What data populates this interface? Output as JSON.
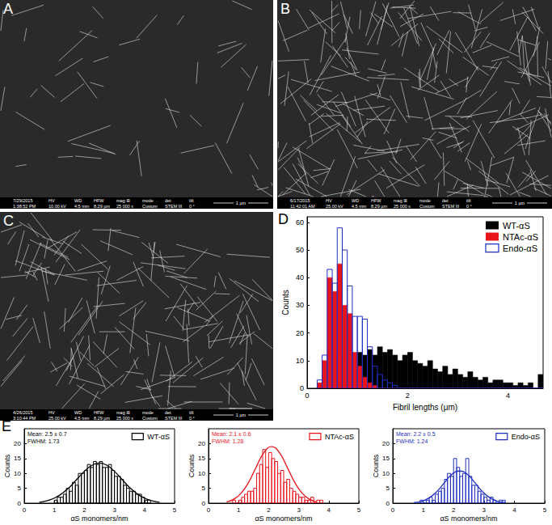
{
  "images": [
    {
      "label": "A",
      "date": "7/29/2015",
      "time": "1:38:52 PM",
      "fields": [
        {
          "label": "HV",
          "value": "10.00 kV"
        },
        {
          "label": "WD",
          "value": "4.5 mm"
        },
        {
          "label": "HFW",
          "value": "8.29 µm"
        },
        {
          "label": "mag ⊞",
          "value": "25 000 x"
        },
        {
          "label": "mode",
          "value": "Custom"
        },
        {
          "label": "det",
          "value": "STEM III"
        },
        {
          "label": "tilt",
          "value": "0 °"
        }
      ],
      "scale": "1 µm"
    },
    {
      "label": "B",
      "date": "6/17/2015",
      "time": "11:42:01 AM",
      "fields": [
        {
          "label": "HV",
          "value": "25.00 kV"
        },
        {
          "label": "WD",
          "value": "4.5 mm"
        },
        {
          "label": "HFW",
          "value": "8.29 µm"
        },
        {
          "label": "mag ⊞",
          "value": "25 000 x"
        },
        {
          "label": "mode",
          "value": "Custom"
        },
        {
          "label": "det",
          "value": "STEM III"
        },
        {
          "label": "tilt",
          "value": "0 °"
        }
      ],
      "scale": "1 µm"
    },
    {
      "label": "C",
      "date": "4/26/2015",
      "time": "3:10:44 PM",
      "fields": [
        {
          "label": "HV",
          "value": "25.00 kV"
        },
        {
          "label": "WD",
          "value": "4.5 mm"
        },
        {
          "label": "HFW",
          "value": "8.29 µm"
        },
        {
          "label": "mag ⊞",
          "value": "25 000 x"
        },
        {
          "label": "mode",
          "value": "Custom"
        },
        {
          "label": "det",
          "value": "STEM III"
        },
        {
          "label": "tilt",
          "value": "0 °"
        }
      ],
      "scale": "1 µm"
    }
  ],
  "chart_data": [
    {
      "title": "D",
      "type": "histogram",
      "x_label": "Fibril lengths (μm)",
      "y_label": "Counts",
      "xlim": [
        0,
        4.7
      ],
      "xticks": [
        0,
        2,
        4
      ],
      "ylim": [
        0,
        62
      ],
      "yticks": [
        0,
        10,
        20,
        30,
        40,
        50,
        60
      ],
      "grid": false,
      "legend": "top-right",
      "bins": [
        0.2,
        0.3,
        0.4,
        0.5,
        0.6,
        0.7,
        0.8,
        0.9,
        1,
        1.1,
        1.2,
        1.3,
        1.4,
        1.5,
        1.6,
        1.7,
        1.8,
        1.9,
        2,
        2.1,
        2.2,
        2.3,
        2.4,
        2.5,
        2.6,
        2.7,
        2.8,
        2.9,
        3,
        3.1,
        3.2,
        3.3,
        3.4,
        3.5,
        3.6,
        3.7,
        3.8,
        3.9,
        4,
        4.1,
        4.2,
        4.3,
        4.4,
        4.5,
        4.6,
        4.7
      ],
      "series": [
        {
          "name": "WT-αS",
          "color": "#000000",
          "marker": "filled",
          "values": [
            0,
            5,
            10,
            12,
            12,
            10,
            10,
            12,
            13,
            12,
            14,
            12,
            15,
            13,
            14,
            12,
            10,
            12,
            13,
            10,
            9,
            8,
            10,
            7,
            6,
            8,
            5,
            7,
            5,
            4,
            6,
            4,
            3,
            4,
            2,
            3,
            3,
            2,
            2,
            1,
            2,
            1,
            2,
            0,
            5
          ]
        },
        {
          "name": "NTAc-αS",
          "color": "#e8141c",
          "marker": "filled",
          "values": [
            2,
            10,
            40,
            35,
            45,
            30,
            27,
            13,
            8,
            4,
            2,
            1,
            0,
            0,
            0,
            0,
            0,
            0,
            0,
            0,
            0,
            0,
            0,
            0,
            0,
            0,
            0,
            0,
            0,
            0,
            0,
            0,
            0,
            0,
            0,
            0,
            0,
            0,
            0,
            0,
            0,
            0,
            0,
            0,
            0
          ]
        },
        {
          "name": "Endo-αS",
          "color": "#1f2fbf",
          "marker": "hollow",
          "values": [
            3,
            12,
            43,
            38,
            58,
            50,
            37,
            26,
            26,
            25,
            15,
            8,
            5,
            3,
            2,
            1,
            0,
            0,
            0,
            0,
            0,
            0,
            0,
            0,
            0,
            0,
            0,
            0,
            0,
            0,
            0,
            0,
            0,
            0,
            0,
            0,
            0,
            0,
            0,
            0,
            0,
            0,
            0,
            0,
            0
          ]
        }
      ]
    },
    {
      "title": "E",
      "type": "histogram",
      "x_label": "αS monomers/nm",
      "y_label": "Counts",
      "xlim": [
        0,
        5
      ],
      "xticks": [
        0,
        1,
        2,
        3,
        4,
        5
      ],
      "ylim": [
        0,
        25
      ],
      "yticks": [
        0,
        5,
        10,
        15,
        20
      ],
      "grid": false,
      "legend": "top-right",
      "annotations": [
        "Mean: 2.5 ± 0.7",
        "FWHM: 1.73"
      ],
      "bins": [
        1,
        1.1,
        1.2,
        1.3,
        1.4,
        1.5,
        1.6,
        1.7,
        1.8,
        1.9,
        2,
        2.1,
        2.2,
        2.3,
        2.4,
        2.5,
        2.6,
        2.7,
        2.8,
        2.9,
        3,
        3.1,
        3.2,
        3.3,
        3.4,
        3.5,
        3.6,
        3.7,
        3.8,
        3.9,
        4,
        4.1,
        4.2
      ],
      "series": [
        {
          "name": "WT-αS",
          "color": "#000000",
          "marker": "hollow",
          "values": [
            1,
            2,
            2,
            3,
            5,
            4,
            7,
            6,
            10,
            10,
            11,
            13,
            12,
            14,
            13,
            14,
            12,
            12,
            13,
            11,
            9,
            9,
            8,
            6,
            5,
            4,
            4,
            3,
            3,
            2,
            1,
            1
          ]
        }
      ],
      "fit": {
        "x": [
          0.5,
          0.75,
          1,
          1.25,
          1.5,
          1.75,
          2,
          2.25,
          2.5,
          2.75,
          3,
          3.25,
          3.5,
          3.75,
          4,
          4.25,
          4.5
        ],
        "y": [
          0.3,
          0.8,
          1.7,
          3.2,
          5.3,
          8.0,
          10.7,
          12.7,
          13.5,
          12.7,
          10.7,
          8.0,
          5.3,
          3.2,
          1.7,
          0.8,
          0.3
        ]
      }
    },
    {
      "type": "histogram",
      "x_label": "αS monomers/nm",
      "y_label": "Counts",
      "xlim": [
        0,
        5
      ],
      "xticks": [
        0,
        1,
        2,
        3,
        4,
        5
      ],
      "ylim": [
        0,
        25
      ],
      "yticks": [
        0,
        5,
        10,
        15,
        20
      ],
      "grid": false,
      "legend": "top-right",
      "annotations": [
        "Mean: 2.1 ± 0.6",
        "FWHM: 1.28"
      ],
      "bins": [
        0.8,
        0.9,
        1,
        1.1,
        1.2,
        1.3,
        1.4,
        1.5,
        1.6,
        1.7,
        1.8,
        1.9,
        2,
        2.1,
        2.2,
        2.3,
        2.4,
        2.5,
        2.6,
        2.7,
        2.8,
        2.9,
        3,
        3.1,
        3.2,
        3.3,
        3.4,
        3.5,
        3.6,
        3.7,
        3.8
      ],
      "series": [
        {
          "name": "NTAc-αS",
          "color": "#e8141c",
          "marker": "hollow",
          "values": [
            1,
            0,
            1,
            2,
            3,
            4,
            4,
            5,
            10,
            13,
            18,
            12,
            17,
            15,
            14,
            10,
            11,
            7,
            8,
            5,
            4,
            3,
            2,
            2,
            1,
            1,
            2,
            0,
            1,
            1
          ]
        }
      ],
      "fit": {
        "x": [
          0.6,
          0.85,
          1.1,
          1.35,
          1.6,
          1.85,
          2.1,
          2.35,
          2.6,
          2.85,
          3.1,
          3.35,
          3.6
        ],
        "y": [
          0.4,
          1.4,
          3.5,
          7.3,
          12.4,
          17.1,
          19,
          17.1,
          12.4,
          7.3,
          3.5,
          1.4,
          0.4
        ]
      }
    },
    {
      "type": "histogram",
      "x_label": "αS monomers/nm",
      "y_label": "Counts",
      "xlim": [
        0,
        5
      ],
      "xticks": [
        0,
        1,
        2,
        3,
        4,
        5
      ],
      "ylim": [
        0,
        25
      ],
      "yticks": [
        0,
        5,
        10,
        15,
        20
      ],
      "grid": false,
      "legend": "top-right",
      "annotations": [
        "Mean: 2.2 ± 0.5",
        "FWHM: 1.24"
      ],
      "bins": [
        0.9,
        1,
        1.1,
        1.2,
        1.3,
        1.4,
        1.5,
        1.6,
        1.7,
        1.8,
        1.9,
        2,
        2.1,
        2.2,
        2.3,
        2.4,
        2.5,
        2.6,
        2.7,
        2.8,
        2.9,
        3,
        3.1,
        3.2,
        3.3,
        3.4,
        3.5,
        3.6,
        3.7
      ],
      "series": [
        {
          "name": "Endo-αS",
          "color": "#1f2fbf",
          "marker": "hollow",
          "values": [
            1,
            0,
            1,
            2,
            1,
            3,
            4,
            5,
            8,
            10,
            9,
            15,
            12,
            9,
            10,
            15,
            9,
            6,
            6,
            4,
            3,
            2,
            1,
            2,
            1,
            0,
            1,
            1
          ]
        }
      ],
      "fit": {
        "x": [
          0.7,
          0.95,
          1.2,
          1.45,
          1.7,
          1.95,
          2.2,
          2.45,
          2.7,
          2.95,
          3.2,
          3.45,
          3.7
        ],
        "y": [
          0.2,
          0.6,
          1.8,
          3.9,
          6.9,
          9.7,
          10.8,
          9.7,
          6.9,
          3.9,
          1.8,
          0.6,
          0.2
        ]
      }
    }
  ]
}
